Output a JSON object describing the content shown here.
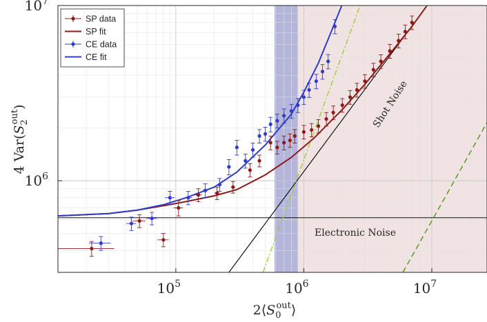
{
  "chart_data": {
    "type": "scatter",
    "x_scale": "log",
    "y_scale": "log",
    "xlim": [
      12000,
      27000000
    ],
    "ylim": [
      300000,
      10000000
    ],
    "grid": true,
    "legend_position": "top-left",
    "xlabel": "2⟨S₀ᵒᵘᵗ⟩",
    "ylabel": "4 Var(S₂ᵒᵘᵗ)",
    "x_ticks": [
      {
        "value": 100000,
        "base": "10",
        "exp": "5"
      },
      {
        "value": 1000000,
        "base": "10",
        "exp": "6"
      },
      {
        "value": 10000000,
        "base": "10",
        "exp": "7"
      }
    ],
    "y_ticks": [
      {
        "value": 1000000,
        "base": "10",
        "exp": "6"
      },
      {
        "value": 10000000,
        "base": "10",
        "exp": "7"
      }
    ],
    "shaded_regions": [
      {
        "name": "blue band",
        "x_range": [
          590000,
          900000
        ],
        "color": "#a3a2d2"
      },
      {
        "name": "red region",
        "x_range": [
          900000,
          27000000
        ],
        "color": "#ecdada"
      }
    ],
    "legend": [
      {
        "label": "SP data",
        "color": "#8b1a1a",
        "kind": "marker"
      },
      {
        "label": "SP fit",
        "color": "#8b1a1a",
        "kind": "line"
      },
      {
        "label": "CE data",
        "color": "#2e3cc6",
        "kind": "marker"
      },
      {
        "label": "CE fit",
        "color": "#2e3cc6",
        "kind": "line"
      }
    ],
    "annotations": {
      "shot_noise": "Shot Noise",
      "electronic_noise": "Electronic Noise"
    },
    "reference_lines": {
      "electronic_noise_level": 615000,
      "shot_noise": {
        "x": [
          260000,
          9200000
        ],
        "y": [
          300000,
          10000000
        ],
        "color": "#111111"
      },
      "green_1": {
        "x": [
          480000,
          2750000
        ],
        "y": [
          300000,
          10000000
        ],
        "color": "#9ccc3a"
      },
      "green_2": {
        "x": [
          5950000,
          27000000
        ],
        "y": [
          300000,
          2150000
        ],
        "color": "#5a9a23"
      }
    },
    "series": [
      {
        "name": "SP fit",
        "color": "#8b1a1a",
        "x": [
          12000,
          30000,
          50000,
          80000,
          120000,
          200000,
          300000,
          500000,
          800000,
          1200000,
          2000000,
          3000000,
          5000000,
          7000000,
          9000000
        ],
        "y": [
          630000,
          650000,
          680000,
          720000,
          760000,
          820000,
          890000,
          1080000,
          1360000,
          1750000,
          2550000,
          3550000,
          5600000,
          7600000,
          9800000
        ]
      },
      {
        "name": "CE fit",
        "color": "#2e3cc6",
        "x": [
          12000,
          30000,
          50000,
          80000,
          120000,
          200000,
          300000,
          500000,
          800000,
          1000000,
          1300000,
          1600000,
          2000000
        ],
        "y": [
          630000,
          650000,
          680000,
          730000,
          800000,
          920000,
          1120000,
          1600000,
          2400000,
          3200000,
          4700000,
          6800000,
          10200000
        ]
      },
      {
        "name": "SP data",
        "color": "#8b1a1a",
        "points": [
          {
            "x": 22000,
            "y": 410000,
            "xerr": [
              12000,
              33000
            ],
            "yerr": [
              370000,
              450000
            ]
          },
          {
            "x": 52000,
            "y": 590000,
            "xerr": [
              46000,
              58000
            ],
            "yerr": [
              540000,
              640000
            ]
          },
          {
            "x": 80000,
            "y": 460000,
            "xerr": [
              72000,
              88000
            ],
            "yerr": [
              420000,
              500000
            ]
          },
          {
            "x": 105000,
            "y": 700000,
            "xerr": [
              96000,
              114000
            ],
            "yerr": [
              630000,
              770000
            ]
          },
          {
            "x": 150000,
            "y": 830000,
            "xerr": [
              140000,
              160000
            ],
            "yerr": [
              760000,
              900000
            ]
          },
          {
            "x": 210000,
            "y": 850000,
            "xerr": [
              200000,
              220000
            ],
            "yerr": [
              780000,
              920000
            ]
          },
          {
            "x": 280000,
            "y": 920000,
            "xerr": [
              270000,
              290000
            ],
            "yerr": [
              850000,
              990000
            ]
          },
          {
            "x": 380000,
            "y": 1150000,
            "xerr": [
              370000,
              390000
            ],
            "yerr": [
              1050000,
              1250000
            ]
          },
          {
            "x": 450000,
            "y": 1300000,
            "xerr": [
              440000,
              460000
            ],
            "yerr": [
              1200000,
              1400000
            ]
          },
          {
            "x": 550000,
            "y": 1650000,
            "xerr": [
              540000,
              560000
            ],
            "yerr": [
              1500000,
              1800000
            ]
          },
          {
            "x": 620000,
            "y": 1550000,
            "xerr": [
              610000,
              630000
            ],
            "yerr": [
              1420000,
              1680000
            ]
          },
          {
            "x": 700000,
            "y": 1650000,
            "xerr": [
              690000,
              710000
            ],
            "yerr": [
              1500000,
              1800000
            ]
          },
          {
            "x": 780000,
            "y": 1700000,
            "xerr": [
              770000,
              790000
            ],
            "yerr": [
              1550000,
              1850000
            ]
          },
          {
            "x": 850000,
            "y": 1800000,
            "xerr": [
              840000,
              860000
            ],
            "yerr": [
              1640000,
              1960000
            ]
          },
          {
            "x": 1000000,
            "y": 1900000,
            "xerr": [
              990000,
              1010000
            ],
            "yerr": [
              1730000,
              2070000
            ]
          },
          {
            "x": 1150000,
            "y": 1950000,
            "xerr": [
              1140000,
              1160000
            ],
            "yerr": [
              1780000,
              2120000
            ]
          },
          {
            "x": 1300000,
            "y": 2050000,
            "xerr": [
              1290000,
              1310000
            ],
            "yerr": [
              1870000,
              2230000
            ]
          },
          {
            "x": 1500000,
            "y": 2250000,
            "xerr": [
              1490000,
              1510000
            ],
            "yerr": [
              2050000,
              2450000
            ]
          },
          {
            "x": 1700000,
            "y": 2450000,
            "xerr": [
              1690000,
              1710000
            ],
            "yerr": [
              2230000,
              2670000
            ]
          },
          {
            "x": 2000000,
            "y": 2700000,
            "xerr": [
              1980000,
              2020000
            ],
            "yerr": [
              2460000,
              2940000
            ]
          },
          {
            "x": 2300000,
            "y": 3000000,
            "xerr": [
              2280000,
              2320000
            ],
            "yerr": [
              2730000,
              3270000
            ]
          },
          {
            "x": 2600000,
            "y": 3300000,
            "xerr": [
              2580000,
              2620000
            ],
            "yerr": [
              3000000,
              3600000
            ]
          },
          {
            "x": 3000000,
            "y": 3700000,
            "xerr": [
              2980000,
              3020000
            ],
            "yerr": [
              3370000,
              4030000
            ]
          },
          {
            "x": 3500000,
            "y": 4300000,
            "xerr": [
              3470000,
              3530000
            ],
            "yerr": [
              3920000,
              4680000
            ]
          },
          {
            "x": 4000000,
            "y": 4800000,
            "xerr": [
              3970000,
              4030000
            ],
            "yerr": [
              4370000,
              5230000
            ]
          },
          {
            "x": 4700000,
            "y": 5500000,
            "xerr": [
              4670000,
              4730000
            ],
            "yerr": [
              5000000,
              6000000
            ]
          },
          {
            "x": 5500000,
            "y": 6300000,
            "xerr": [
              5460000,
              5540000
            ],
            "yerr": [
              5730000,
              6870000
            ]
          },
          {
            "x": 6200000,
            "y": 7100000,
            "xerr": [
              6160000,
              6240000
            ],
            "yerr": [
              6460000,
              7740000
            ]
          },
          {
            "x": 7000000,
            "y": 8000000,
            "xerr": [
              6950000,
              7050000
            ],
            "yerr": [
              7280000,
              8720000
            ]
          }
        ]
      },
      {
        "name": "CE data",
        "color": "#2e3cc6",
        "points": [
          {
            "x": 26000,
            "y": 440000,
            "xerr": [
              21000,
              31000
            ],
            "yerr": [
              400000,
              480000
            ]
          },
          {
            "x": 45000,
            "y": 570000,
            "xerr": [
              41000,
              49000
            ],
            "yerr": [
              520000,
              620000
            ]
          },
          {
            "x": 65000,
            "y": 610000,
            "xerr": [
              59000,
              71000
            ],
            "yerr": [
              560000,
              660000
            ]
          },
          {
            "x": 90000,
            "y": 800000,
            "xerr": [
              82000,
              98000
            ],
            "yerr": [
              730000,
              870000
            ]
          },
          {
            "x": 125000,
            "y": 800000,
            "xerr": [
              116000,
              134000
            ],
            "yerr": [
              730000,
              870000
            ]
          },
          {
            "x": 170000,
            "y": 880000,
            "xerr": [
              162000,
              178000
            ],
            "yerr": [
              800000,
              960000
            ]
          },
          {
            "x": 220000,
            "y": 950000,
            "xerr": [
              212000,
              228000
            ],
            "yerr": [
              870000,
              1030000
            ]
          },
          {
            "x": 260000,
            "y": 1200000,
            "xerr": [
              252000,
              268000
            ],
            "yerr": [
              1080000,
              1320000
            ]
          },
          {
            "x": 300000,
            "y": 1550000,
            "xerr": [
              292000,
              308000
            ],
            "yerr": [
              1400000,
              1700000
            ]
          },
          {
            "x": 350000,
            "y": 1300000,
            "xerr": [
              342000,
              358000
            ],
            "yerr": [
              1180000,
              1420000
            ]
          },
          {
            "x": 400000,
            "y": 1500000,
            "xerr": [
              392000,
              408000
            ],
            "yerr": [
              1360000,
              1640000
            ]
          },
          {
            "x": 450000,
            "y": 1800000,
            "xerr": [
              440000,
              460000
            ],
            "yerr": [
              1640000,
              1960000
            ]
          },
          {
            "x": 500000,
            "y": 1850000,
            "xerr": [
              490000,
              510000
            ],
            "yerr": [
              1680000,
              2020000
            ]
          },
          {
            "x": 550000,
            "y": 2100000,
            "xerr": [
              540000,
              560000
            ],
            "yerr": [
              1900000,
              2300000
            ]
          },
          {
            "x": 620000,
            "y": 2200000,
            "xerr": [
              610000,
              630000
            ],
            "yerr": [
              2000000,
              2400000
            ]
          },
          {
            "x": 700000,
            "y": 2350000,
            "xerr": [
              690000,
              710000
            ],
            "yerr": [
              2130000,
              2570000
            ]
          },
          {
            "x": 800000,
            "y": 2500000,
            "xerr": [
              790000,
              810000
            ],
            "yerr": [
              2270000,
              2730000
            ]
          },
          {
            "x": 900000,
            "y": 2700000,
            "xerr": [
              890000,
              910000
            ],
            "yerr": [
              2450000,
              2950000
            ]
          },
          {
            "x": 1000000,
            "y": 3000000,
            "xerr": [
              990000,
              1010000
            ],
            "yerr": [
              2720000,
              3280000
            ]
          },
          {
            "x": 1100000,
            "y": 3300000,
            "xerr": [
              1090000,
              1110000
            ],
            "yerr": [
              2990000,
              3610000
            ]
          },
          {
            "x": 1250000,
            "y": 3700000,
            "xerr": [
              1240000,
              1260000
            ],
            "yerr": [
              3350000,
              4050000
            ]
          },
          {
            "x": 1400000,
            "y": 4200000,
            "xerr": [
              1390000,
              1410000
            ],
            "yerr": [
              3800000,
              4600000
            ]
          },
          {
            "x": 1550000,
            "y": 4800000,
            "xerr": [
              1540000,
              1560000
            ],
            "yerr": [
              4350000,
              5250000
            ]
          },
          {
            "x": 1750000,
            "y": 7600000,
            "xerr": [
              1740000,
              1760000
            ],
            "yerr": [
              6900000,
              8300000
            ]
          }
        ]
      }
    ]
  }
}
